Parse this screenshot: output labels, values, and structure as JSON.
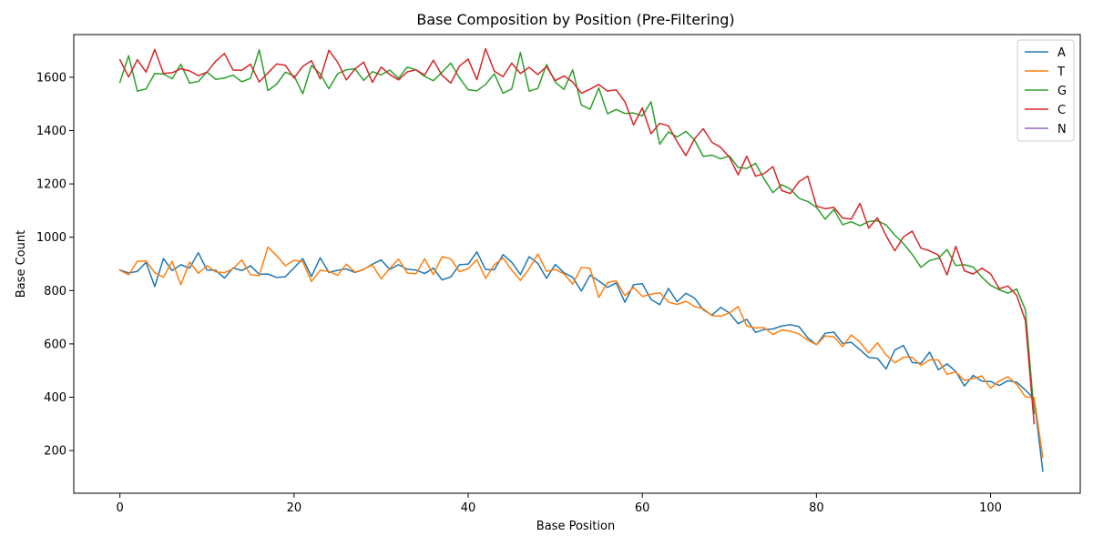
{
  "chart_data": {
    "type": "line",
    "title": "Base Composition by Position (Pre-Filtering)",
    "xlabel": "Base Position",
    "ylabel": "Base Count",
    "xlim": [
      -5.3,
      110.3
    ],
    "ylim": [
      40,
      1760
    ],
    "xticks": [
      0,
      20,
      40,
      60,
      80,
      100
    ],
    "yticks": [
      200,
      400,
      600,
      800,
      1000,
      1200,
      1400,
      1600
    ],
    "grid": false,
    "legend_position": "top-right",
    "series": [
      {
        "name": "A",
        "color": "#1f77b4",
        "values": [
          877,
          866,
          872,
          906,
          815,
          920,
          875,
          897,
          884,
          942,
          877,
          876,
          847,
          885,
          875,
          893,
          861,
          862,
          849,
          852,
          885,
          920,
          853,
          923,
          868,
          876,
          881,
          868,
          879,
          899,
          915,
          879,
          897,
          880,
          877,
          864,
          884,
          840,
          851,
          897,
          899,
          945,
          879,
          878,
          935,
          906,
          860,
          927,
          902,
          846,
          898,
          867,
          850,
          798,
          858,
          836,
          812,
          829,
          756,
          822,
          826,
          767,
          747,
          808,
          758,
          790,
          772,
          728,
          708,
          737,
          716,
          676,
          692,
          643,
          654,
          656,
          667,
          672,
          665,
          623,
          597,
          640,
          644,
          602,
          606,
          578,
          549,
          546,
          506,
          577,
          594,
          530,
          527,
          569,
          503,
          525,
          497,
          442,
          482,
          460,
          459,
          444,
          462,
          456,
          427,
          394,
          123
        ]
      },
      {
        "name": "T",
        "color": "#ff7f0e",
        "values": [
          876,
          859,
          910,
          911,
          867,
          850,
          910,
          822,
          907,
          865,
          893,
          870,
          867,
          882,
          915,
          859,
          856,
          963,
          931,
          893,
          914,
          908,
          834,
          876,
          872,
          857,
          899,
          869,
          880,
          896,
          844,
          883,
          918,
          866,
          863,
          919,
          860,
          927,
          919,
          871,
          882,
          916,
          845,
          897,
          922,
          877,
          838,
          882,
          937,
          872,
          879,
          863,
          824,
          887,
          883,
          774,
          830,
          837,
          781,
          812,
          778,
          786,
          792,
          757,
          748,
          760,
          740,
          732,
          706,
          704,
          716,
          740,
          667,
          660,
          661,
          635,
          652,
          648,
          637,
          614,
          597,
          630,
          626,
          590,
          634,
          606,
          566,
          604,
          559,
          529,
          550,
          550,
          519,
          540,
          540,
          486,
          495,
          463,
          470,
          480,
          434,
          461,
          477,
          448,
          401,
          399,
          174
        ]
      },
      {
        "name": "G",
        "color": "#2ca02c",
        "values": [
          1581,
          1681,
          1548,
          1556,
          1614,
          1612,
          1594,
          1649,
          1578,
          1584,
          1620,
          1592,
          1597,
          1608,
          1583,
          1596,
          1703,
          1550,
          1574,
          1619,
          1605,
          1538,
          1644,
          1613,
          1557,
          1613,
          1628,
          1632,
          1588,
          1621,
          1609,
          1627,
          1596,
          1638,
          1628,
          1603,
          1587,
          1619,
          1653,
          1598,
          1553,
          1549,
          1573,
          1613,
          1540,
          1556,
          1693,
          1548,
          1558,
          1648,
          1582,
          1554,
          1628,
          1496,
          1480,
          1560,
          1463,
          1479,
          1464,
          1466,
          1455,
          1508,
          1349,
          1395,
          1376,
          1397,
          1365,
          1303,
          1308,
          1294,
          1305,
          1262,
          1258,
          1277,
          1218,
          1167,
          1197,
          1181,
          1146,
          1134,
          1112,
          1068,
          1104,
          1047,
          1058,
          1043,
          1059,
          1062,
          1046,
          1008,
          976,
          936,
          887,
          913,
          921,
          954,
          894,
          897,
          888,
          850,
          820,
          803,
          790,
          806,
          728,
          340
        ]
      },
      {
        "name": "C",
        "color": "#d62728",
        "values": [
          1666,
          1601,
          1666,
          1619,
          1704,
          1614,
          1617,
          1632,
          1624,
          1606,
          1619,
          1660,
          1689,
          1627,
          1626,
          1649,
          1582,
          1616,
          1650,
          1645,
          1597,
          1641,
          1662,
          1594,
          1701,
          1657,
          1590,
          1631,
          1657,
          1581,
          1638,
          1610,
          1590,
          1620,
          1628,
          1608,
          1664,
          1607,
          1578,
          1642,
          1668,
          1591,
          1707,
          1623,
          1602,
          1653,
          1614,
          1637,
          1610,
          1640,
          1587,
          1605,
          1582,
          1540,
          1555,
          1573,
          1548,
          1553,
          1508,
          1421,
          1485,
          1388,
          1427,
          1418,
          1358,
          1306,
          1369,
          1407,
          1356,
          1337,
          1300,
          1234,
          1304,
          1229,
          1239,
          1265,
          1175,
          1164,
          1209,
          1229,
          1117,
          1107,
          1112,
          1072,
          1068,
          1127,
          1034,
          1073,
          1006,
          949,
          1001,
          1023,
          959,
          949,
          933,
          859,
          966,
          874,
          862,
          884,
          863,
          807,
          817,
          782,
          687,
          301
        ]
      },
      {
        "name": "N",
        "color": "#9467bd",
        "values": []
      }
    ]
  }
}
